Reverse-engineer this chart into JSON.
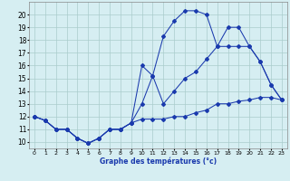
{
  "xlabel": "Graphe des températures (°c)",
  "background_color": "#d6eef2",
  "grid_color": "#aacccc",
  "line_color": "#1a3aad",
  "xlim": [
    -0.5,
    23.5
  ],
  "ylim": [
    9.5,
    21.0
  ],
  "xticks": [
    0,
    1,
    2,
    3,
    4,
    5,
    6,
    7,
    8,
    9,
    10,
    11,
    12,
    13,
    14,
    15,
    16,
    17,
    18,
    19,
    20,
    21,
    22,
    23
  ],
  "yticks": [
    10,
    11,
    12,
    13,
    14,
    15,
    16,
    17,
    18,
    19,
    20
  ],
  "series1_x": [
    0,
    1,
    2,
    3,
    4,
    5,
    6,
    7,
    8,
    9,
    10,
    11,
    12,
    13,
    14,
    15,
    16,
    17,
    18,
    19,
    20,
    21,
    22,
    23
  ],
  "series1_y": [
    12.0,
    11.7,
    11.0,
    11.0,
    10.3,
    9.9,
    10.3,
    11.0,
    11.0,
    11.5,
    13.0,
    15.2,
    18.3,
    19.5,
    20.3,
    20.3,
    20.0,
    17.5,
    19.0,
    19.0,
    17.5,
    16.3,
    14.5,
    13.3
  ],
  "series2_x": [
    0,
    1,
    2,
    3,
    4,
    5,
    6,
    7,
    8,
    9,
    10,
    11,
    12,
    13,
    14,
    15,
    16,
    17,
    18,
    19,
    20,
    21,
    22,
    23
  ],
  "series2_y": [
    12.0,
    11.7,
    11.0,
    11.0,
    10.3,
    9.9,
    10.3,
    11.0,
    11.0,
    11.5,
    16.0,
    15.2,
    13.0,
    14.0,
    15.0,
    15.5,
    16.5,
    17.5,
    17.5,
    17.5,
    17.5,
    16.3,
    14.5,
    13.3
  ],
  "series3_x": [
    0,
    1,
    2,
    3,
    4,
    5,
    6,
    7,
    8,
    9,
    10,
    11,
    12,
    13,
    14,
    15,
    16,
    17,
    18,
    19,
    20,
    21,
    22,
    23
  ],
  "series3_y": [
    12.0,
    11.7,
    11.0,
    11.0,
    10.3,
    9.9,
    10.3,
    11.0,
    11.0,
    11.5,
    11.8,
    11.8,
    11.8,
    12.0,
    12.0,
    12.3,
    12.5,
    13.0,
    13.0,
    13.2,
    13.3,
    13.5,
    13.5,
    13.3
  ]
}
